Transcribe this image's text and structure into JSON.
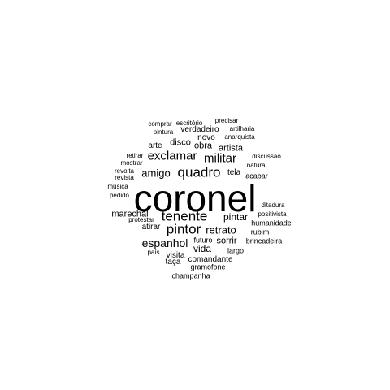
{
  "word_cloud": {
    "text_color": "#000000",
    "background_color": "#ffffff",
    "words": [
      {
        "text": "coronel"
      },
      {
        "text": "tenente"
      },
      {
        "text": "quadro"
      },
      {
        "text": "pintor"
      },
      {
        "text": "militar"
      },
      {
        "text": "exclamar"
      },
      {
        "text": "espanhol"
      },
      {
        "text": "amigo"
      },
      {
        "text": "retrato"
      },
      {
        "text": "pintar"
      },
      {
        "text": "vida"
      },
      {
        "text": "marechal"
      },
      {
        "text": "sorrir"
      },
      {
        "text": "artista"
      },
      {
        "text": "disco"
      },
      {
        "text": "obra"
      },
      {
        "text": "arte"
      },
      {
        "text": "verdadeiro"
      },
      {
        "text": "novo"
      },
      {
        "text": "tela"
      },
      {
        "text": "atirar"
      },
      {
        "text": "comandante"
      },
      {
        "text": "visita"
      },
      {
        "text": "taça"
      },
      {
        "text": "gramofone"
      },
      {
        "text": "futuro"
      },
      {
        "text": "champanha"
      },
      {
        "text": "largo"
      },
      {
        "text": "brincadeira"
      },
      {
        "text": "rubim"
      },
      {
        "text": "humanidade"
      },
      {
        "text": "positivista"
      },
      {
        "text": "ditadura"
      },
      {
        "text": "acabar"
      },
      {
        "text": "natural"
      },
      {
        "text": "discussão"
      },
      {
        "text": "anarquista"
      },
      {
        "text": "artilharia"
      },
      {
        "text": "precisar"
      },
      {
        "text": "escritório"
      },
      {
        "text": "comprar"
      },
      {
        "text": "pintura"
      },
      {
        "text": "retirar"
      },
      {
        "text": "mostrar"
      },
      {
        "text": "revolta"
      },
      {
        "text": "revista"
      },
      {
        "text": "música"
      },
      {
        "text": "pedido"
      },
      {
        "text": "protestar"
      },
      {
        "text": "país"
      }
    ]
  }
}
